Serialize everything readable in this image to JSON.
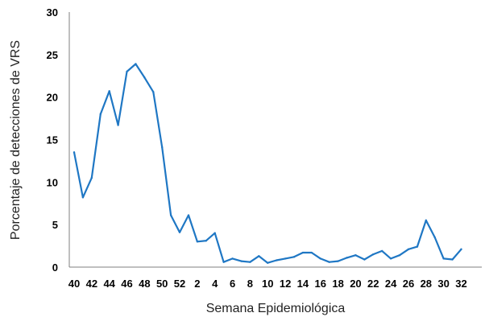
{
  "chart_data": {
    "type": "line",
    "xlabel": "Semana Epidemiológica",
    "ylabel": "Porcentaje de detecciones de VRS",
    "ylim": [
      0,
      30
    ],
    "y_ticks": [
      0,
      5,
      10,
      15,
      20,
      25,
      30
    ],
    "x_tick_labels": [
      "40",
      "42",
      "44",
      "46",
      "48",
      "50",
      "52",
      "2",
      "4",
      "6",
      "8",
      "10",
      "12",
      "14",
      "16",
      "18",
      "20",
      "22",
      "24",
      "26",
      "28",
      "30",
      "32"
    ],
    "grid": false,
    "color": "#1f77c4",
    "categories": [
      "40",
      "41",
      "42",
      "43",
      "44",
      "45",
      "46",
      "47",
      "48",
      "49",
      "50",
      "51",
      "52",
      "1",
      "2",
      "3",
      "4",
      "5",
      "6",
      "7",
      "8",
      "9",
      "10",
      "11",
      "12",
      "13",
      "14",
      "15",
      "16",
      "17",
      "18",
      "19",
      "20",
      "21",
      "22",
      "23",
      "24",
      "25",
      "26",
      "27",
      "28",
      "29",
      "30",
      "31",
      "32"
    ],
    "values": [
      13.5,
      8.2,
      10.5,
      18,
      20.7,
      16.7,
      23,
      23.9,
      22.3,
      20.6,
      14.1,
      6.1,
      4.1,
      6.1,
      3,
      3.1,
      4,
      0.6,
      1,
      0.7,
      0.6,
      1.3,
      0.5,
      0.8,
      1,
      1.2,
      1.7,
      1.7,
      1,
      0.6,
      0.7,
      1.1,
      1.4,
      0.9,
      1.5,
      1.9,
      1,
      1.4,
      2.1,
      2.4,
      5.5,
      3.5,
      1,
      0.9,
      2.1
    ]
  }
}
